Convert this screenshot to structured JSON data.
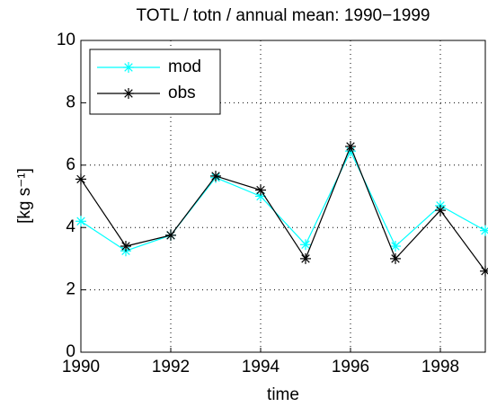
{
  "chart_data": {
    "type": "line",
    "title": "TOTL / totn / annual mean: 1990−1999",
    "xlabel": "time",
    "ylabel": "[kg s⁻¹]",
    "x": [
      1990,
      1991,
      1992,
      1993,
      1994,
      1995,
      1996,
      1997,
      1998,
      1999
    ],
    "series": [
      {
        "name": "mod",
        "color": "#00ffff",
        "values": [
          4.2,
          3.25,
          3.75,
          5.6,
          5.0,
          3.45,
          6.45,
          3.4,
          4.7,
          3.9
        ]
      },
      {
        "name": "obs",
        "color": "#000000",
        "values": [
          5.55,
          3.4,
          3.75,
          5.65,
          5.2,
          3.0,
          6.6,
          3.0,
          4.55,
          2.6
        ]
      }
    ],
    "xlim": [
      1990,
      1999
    ],
    "xticks": [
      1990,
      1992,
      1994,
      1996,
      1998
    ],
    "ylim": [
      0,
      10
    ],
    "yticks": [
      0,
      2,
      4,
      6,
      8,
      10
    ],
    "grid": true,
    "legend": "upper-left"
  }
}
